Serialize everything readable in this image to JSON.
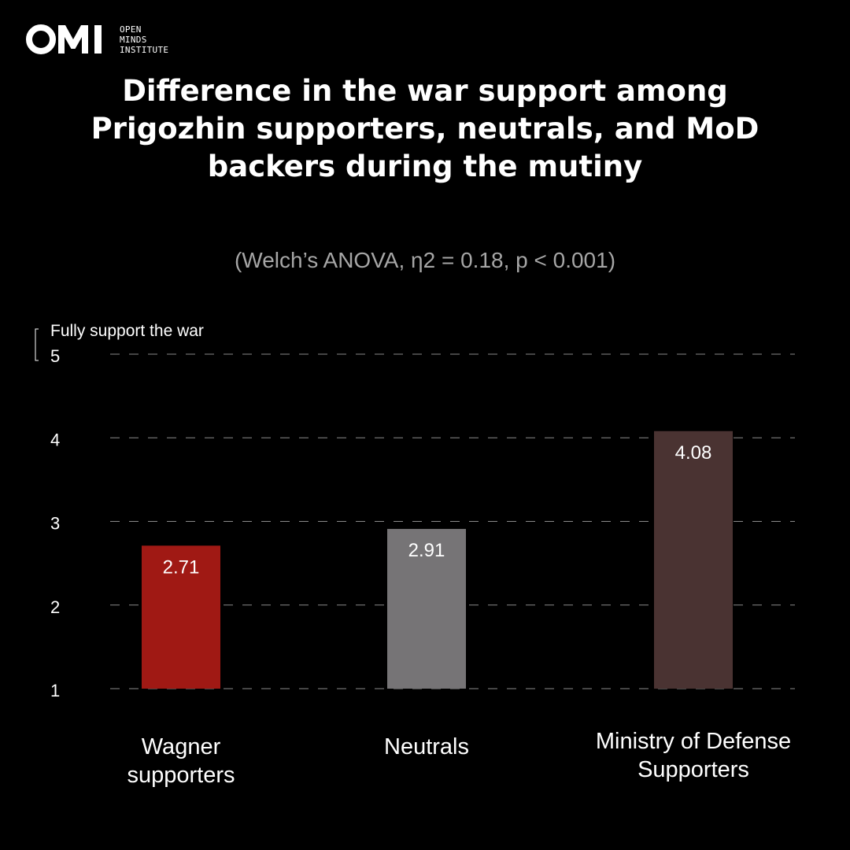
{
  "brand": {
    "logo_lines": [
      "OPEN",
      "MINDS",
      "INSTITUTE"
    ]
  },
  "chart_data": {
    "type": "bar",
    "title": "Difference in the war support among Prigozhin supporters, neutrals, and MoD backers during the mutiny",
    "subtitle": "(Welch’s ANOVA, η2 = 0.18, p < 0.001)",
    "ylabel": "Fully support the war",
    "ylim": [
      1,
      5
    ],
    "yticks": [
      1,
      2,
      3,
      4,
      5
    ],
    "grid": true,
    "categories": [
      {
        "lines": [
          "Wagner",
          "supporters"
        ]
      },
      {
        "lines": [
          "Neutrals"
        ]
      },
      {
        "lines": [
          "Ministry of Defense",
          "Supporters"
        ]
      }
    ],
    "values": [
      2.71,
      2.91,
      4.08
    ],
    "value_labels": [
      "2.71",
      "2.91",
      "4.08"
    ],
    "colors": [
      "#a01914",
      "#767476",
      "#4a3332"
    ]
  }
}
